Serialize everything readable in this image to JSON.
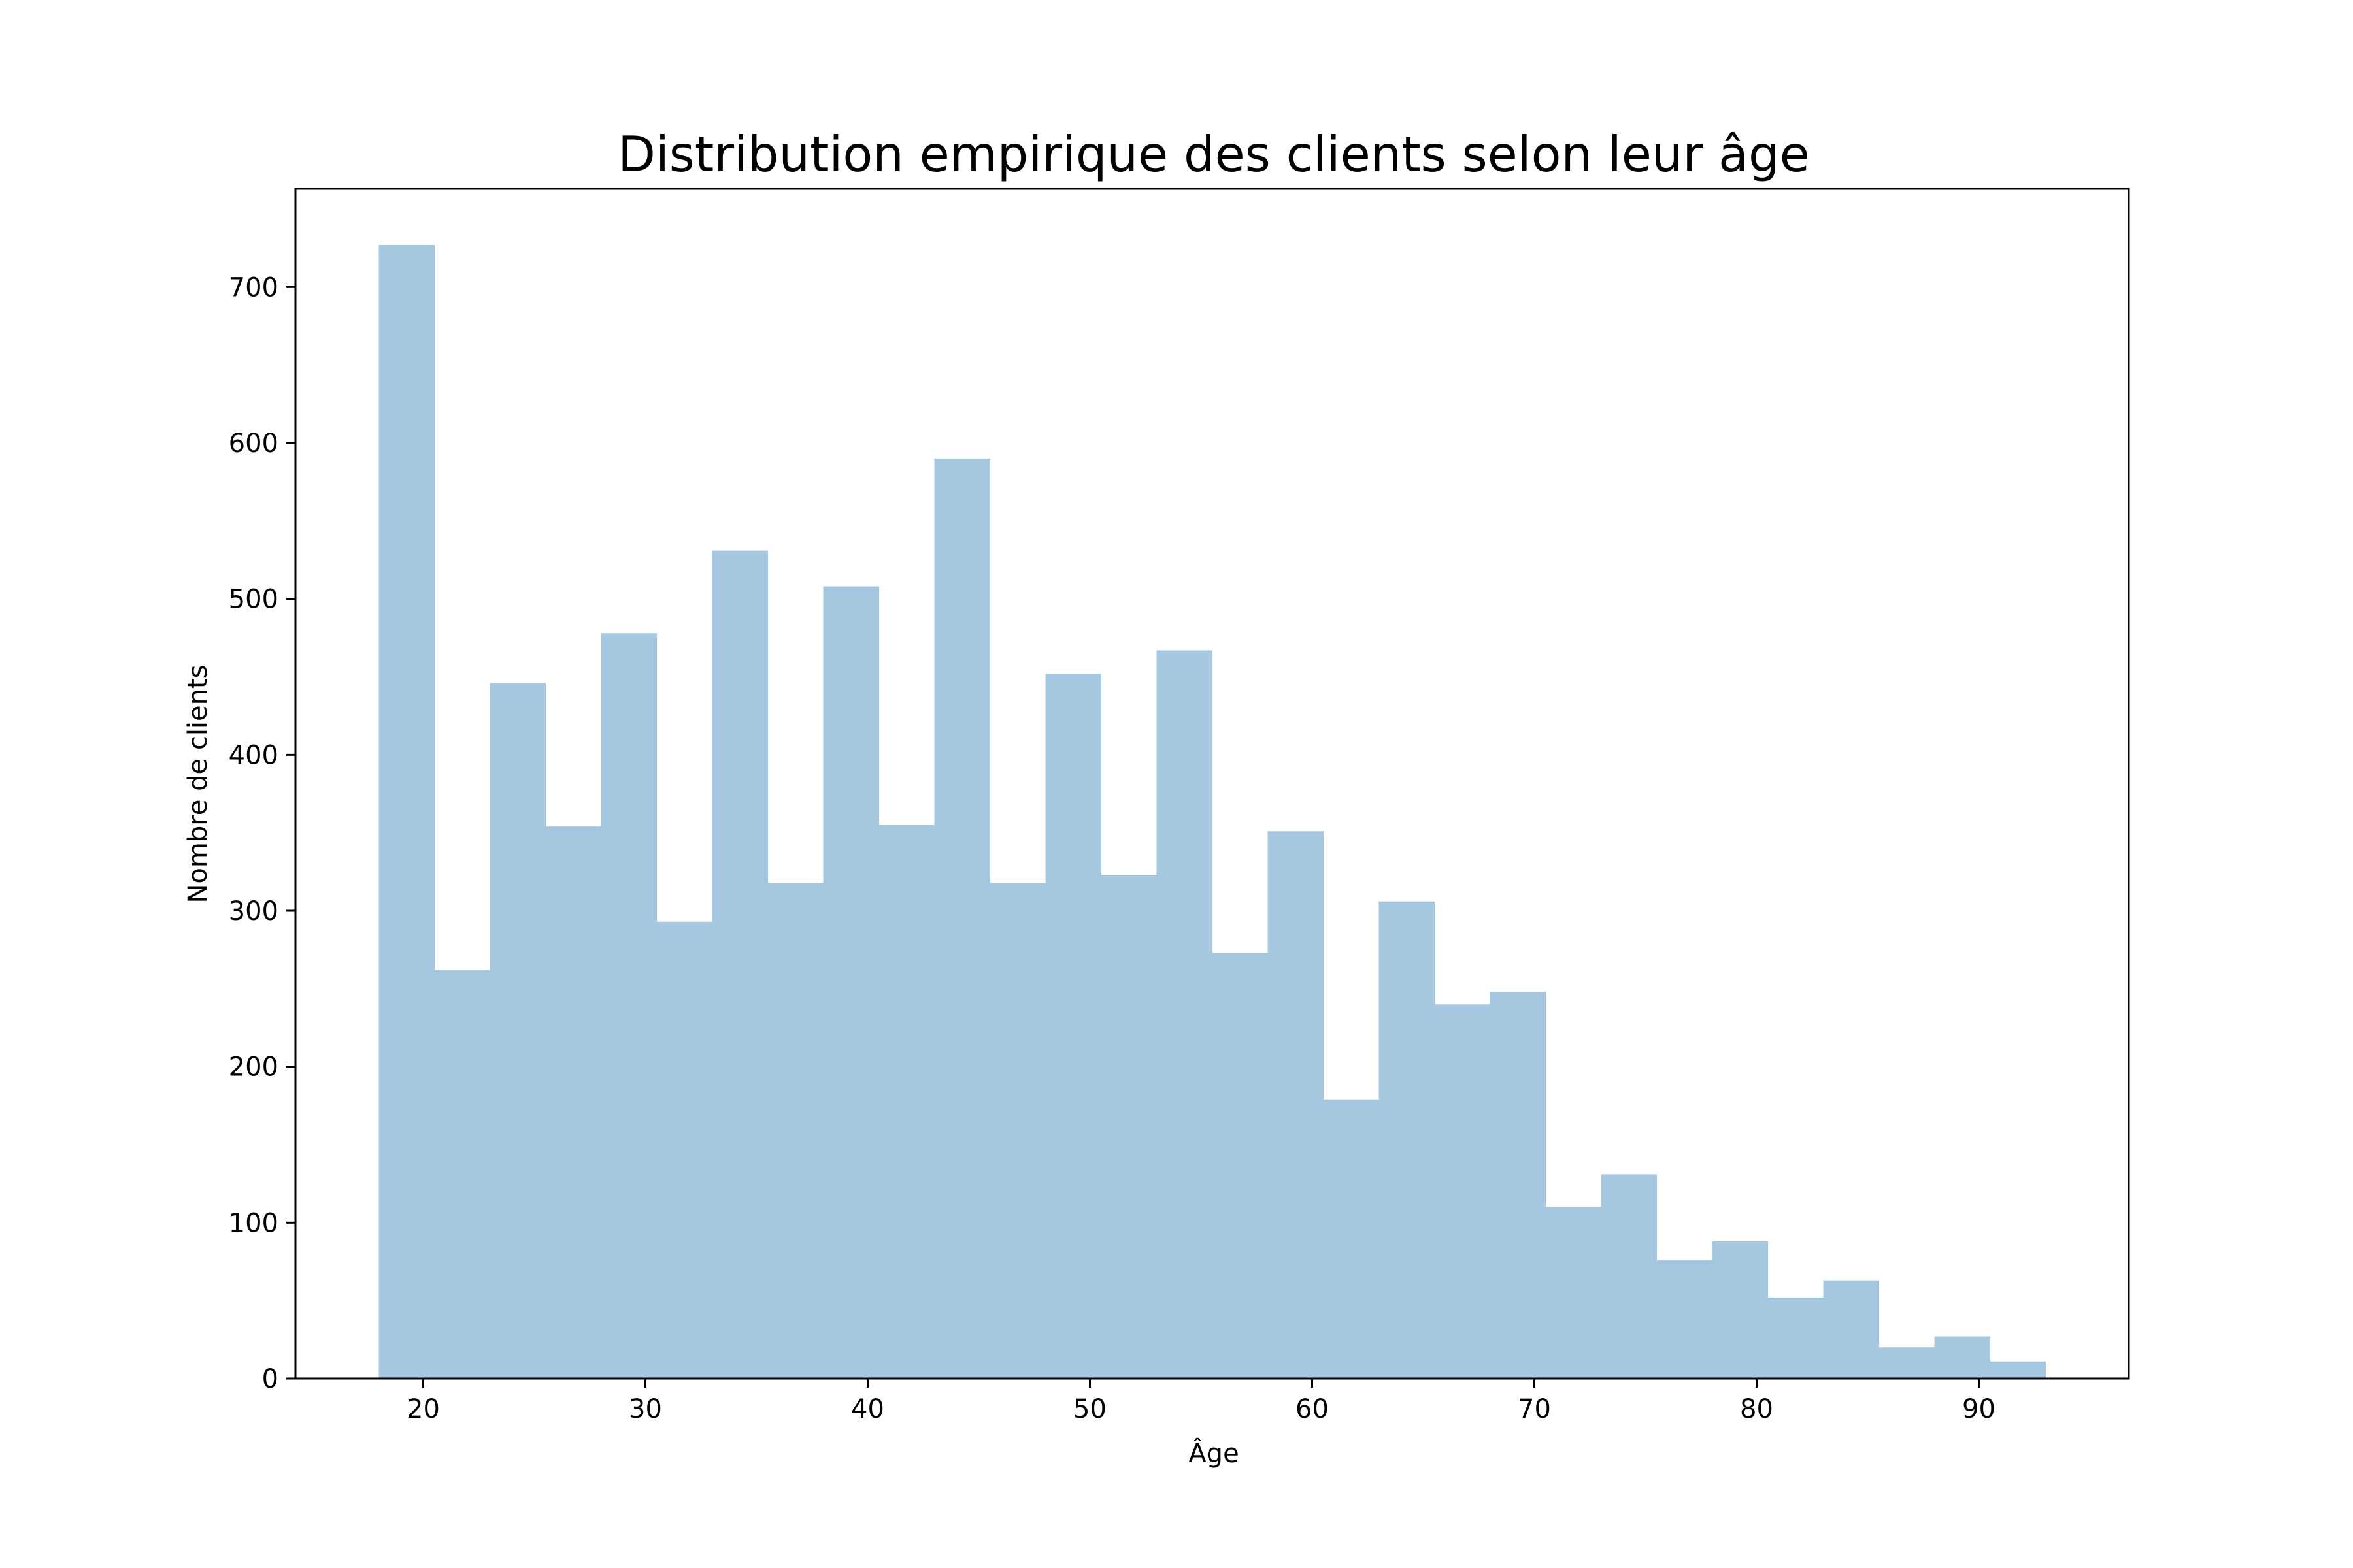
{
  "chart_data": {
    "type": "bar",
    "title": "Distribution empirique des clients selon leur âge",
    "xlabel": "Âge",
    "ylabel": "Nombre de clients",
    "xlim": [
      14.25,
      96.75
    ],
    "ylim": [
      0,
      763
    ],
    "xticks": [
      20,
      30,
      40,
      50,
      60,
      70,
      80,
      90
    ],
    "yticks": [
      0,
      100,
      200,
      300,
      400,
      500,
      600,
      700
    ],
    "grid": false,
    "bar_color": "#a5c8e0",
    "bins": [
      {
        "start": 18.0,
        "end": 20.5,
        "count": 727
      },
      {
        "start": 20.5,
        "end": 23.0,
        "count": 262
      },
      {
        "start": 23.0,
        "end": 25.5,
        "count": 446
      },
      {
        "start": 25.5,
        "end": 28.0,
        "count": 354
      },
      {
        "start": 28.0,
        "end": 30.5,
        "count": 478
      },
      {
        "start": 30.5,
        "end": 33.0,
        "count": 293
      },
      {
        "start": 33.0,
        "end": 35.5,
        "count": 531
      },
      {
        "start": 35.5,
        "end": 38.0,
        "count": 318
      },
      {
        "start": 38.0,
        "end": 40.5,
        "count": 508
      },
      {
        "start": 40.5,
        "end": 43.0,
        "count": 355
      },
      {
        "start": 43.0,
        "end": 45.5,
        "count": 590
      },
      {
        "start": 45.5,
        "end": 48.0,
        "count": 318
      },
      {
        "start": 48.0,
        "end": 50.5,
        "count": 452
      },
      {
        "start": 50.5,
        "end": 53.0,
        "count": 323
      },
      {
        "start": 53.0,
        "end": 55.5,
        "count": 467
      },
      {
        "start": 55.5,
        "end": 58.0,
        "count": 273
      },
      {
        "start": 58.0,
        "end": 60.5,
        "count": 351
      },
      {
        "start": 60.5,
        "end": 63.0,
        "count": 179
      },
      {
        "start": 63.0,
        "end": 65.5,
        "count": 306
      },
      {
        "start": 65.5,
        "end": 68.0,
        "count": 240
      },
      {
        "start": 68.0,
        "end": 70.5,
        "count": 248
      },
      {
        "start": 70.5,
        "end": 73.0,
        "count": 110
      },
      {
        "start": 73.0,
        "end": 75.5,
        "count": 131
      },
      {
        "start": 75.5,
        "end": 78.0,
        "count": 76
      },
      {
        "start": 78.0,
        "end": 80.5,
        "count": 88
      },
      {
        "start": 80.5,
        "end": 83.0,
        "count": 52
      },
      {
        "start": 83.0,
        "end": 85.5,
        "count": 63
      },
      {
        "start": 85.5,
        "end": 88.0,
        "count": 20
      },
      {
        "start": 88.0,
        "end": 90.5,
        "count": 27
      },
      {
        "start": 90.5,
        "end": 93.0,
        "count": 11
      }
    ]
  }
}
